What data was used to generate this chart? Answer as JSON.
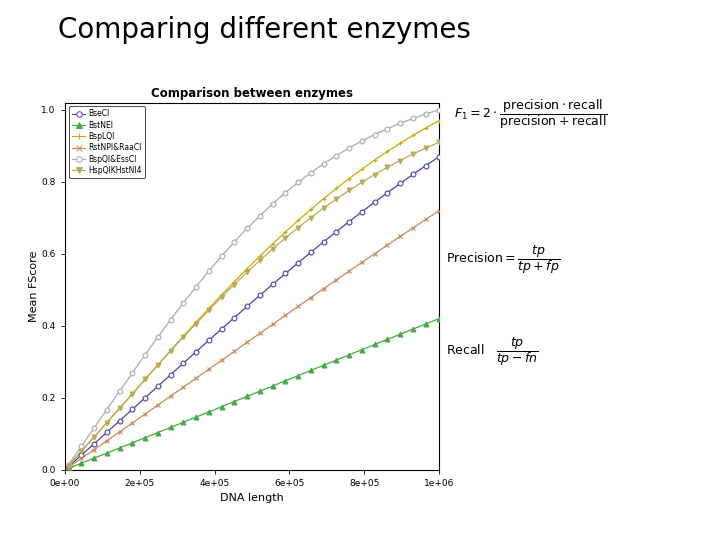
{
  "title": "Comparing different enzymes",
  "plot_title": "Comparison between enzymes",
  "xlabel": "DNA length",
  "ylabel": "Mean FScore",
  "xlim": [
    0,
    1000000
  ],
  "ylim": [
    0,
    1.0
  ],
  "xtick_labels": [
    "0e+00",
    "2e+05",
    "4e+05",
    "6e+05",
    "8e+05",
    "1e+06"
  ],
  "ytick_labels": [
    "0.0",
    "0.2",
    "0.4",
    "0.6",
    "0.8",
    "1.0"
  ],
  "series": [
    {
      "label": "BseCI",
      "color": "#4444bb",
      "marker": "o",
      "rate": 1.5e-06,
      "max_v": 0.87,
      "hollow": true
    },
    {
      "label": "BstNEI",
      "color": "#44aa44",
      "marker": "^",
      "rate": 6.5e-07,
      "max_v": 0.42,
      "hollow": false
    },
    {
      "label": "BspLQI",
      "color": "#ccaa00",
      "marker": "+",
      "rate": 2.2e-06,
      "max_v": 0.97,
      "hollow": false
    },
    {
      "label": "RstNPI&RaaCl",
      "color": "#cc8855",
      "marker": "x",
      "rate": 9e-07,
      "max_v": 0.72,
      "hollow": false
    },
    {
      "label": "BspQI&EssCl",
      "color": "#aaaaaa",
      "marker": "o",
      "rate": 3.2e-06,
      "max_v": 1.0,
      "hollow": true
    },
    {
      "label": "HspQIKHstNI4",
      "color": "#bbaa55",
      "marker": "v",
      "rate": 2.5e-06,
      "max_v": 0.91,
      "hollow": false
    }
  ],
  "background_color": "#ffffff",
  "plot_bg": "#ffffff",
  "formula_f1_color": "#333333",
  "formula_prec_color": "#333333",
  "formula_recall_color": "#333333"
}
